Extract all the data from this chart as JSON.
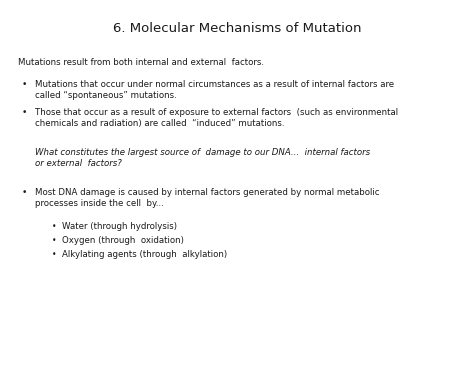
{
  "title": "6. Molecular Mechanisms of Mutation",
  "background_color": "#ffffff",
  "title_fontsize": 9.5,
  "body_fontsize": 6.2,
  "text_color": "#1a1a1a",
  "intro_line": "Mutations result from both internal and external  factors.",
  "bullet1_line1": "Mutations that occur under normal circumstances as a result of internal factors are",
  "bullet1_line2": "called “spontaneous” mutations.",
  "bullet2_line1": "Those that occur as a result of exposure to external factors  (such as environmental",
  "bullet2_line2": "chemicals and radiation) are called  “induced” mutations.",
  "italic_line1": "What constitutes the largest source of  damage to our DNA...  internal factors",
  "italic_line2": "or external  factors?",
  "bullet3_line1": "Most DNA damage is caused by internal factors generated by normal metabolic",
  "bullet3_line2": "processes inside the cell  by...",
  "sub_bullet1": "Water (through hydrolysis)",
  "sub_bullet2": "Oxygen (through  oxidation)",
  "sub_bullet3": "Alkylating agents (through  alkylation)"
}
